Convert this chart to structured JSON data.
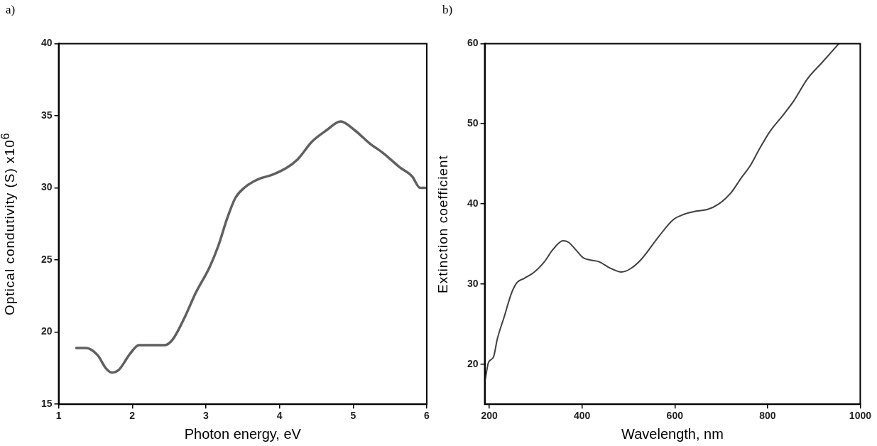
{
  "chart_data": [
    {
      "type": "line",
      "title": "a)",
      "xlabel": "Photon energy, eV",
      "ylabel": "Optical condutivity (S) x10$^{6}$",
      "xlim": [
        1,
        6
      ],
      "ylim": [
        15,
        40
      ],
      "xticks": [
        1,
        2,
        3,
        4,
        5,
        6
      ],
      "yticks": [
        15,
        20,
        25,
        30,
        35,
        40
      ],
      "grid": false,
      "legend": false,
      "marker": "none",
      "line_style": "solid",
      "series": [
        {
          "color": "#606060",
          "x": [
            1.24,
            1.37,
            1.53,
            1.64,
            1.72,
            1.82,
            1.97,
            2.09,
            2.24,
            2.44,
            2.55,
            2.71,
            2.86,
            3.05,
            3.17,
            3.29,
            3.4,
            3.52,
            3.71,
            3.9,
            4.1,
            4.25,
            4.44,
            4.64,
            4.83,
            5.02,
            5.22,
            5.41,
            5.64,
            5.8,
            5.91,
            5.99
          ],
          "values": [
            18.9,
            18.9,
            18.4,
            17.5,
            17.2,
            17.4,
            18.5,
            19.1,
            19.1,
            19.1,
            19.5,
            21,
            22.7,
            24.5,
            26,
            27.9,
            29.3,
            30,
            30.6,
            30.9,
            31.4,
            32,
            33.2,
            34,
            34.6,
            34,
            33.1,
            32.4,
            31.4,
            30.8,
            30,
            30
          ]
        }
      ]
    },
    {
      "type": "line",
      "title": "b)",
      "xlabel": "Wavelength, nm",
      "ylabel": "Extinction coefficient",
      "xlim": [
        190,
        1000
      ],
      "ylim": [
        15,
        60
      ],
      "xticks": [
        200,
        400,
        600,
        800,
        1000
      ],
      "yticks": [
        20,
        30,
        40,
        50,
        60
      ],
      "grid": false,
      "legend": false,
      "marker": "none",
      "line_style": "solid",
      "series": [
        {
          "color": "#404040",
          "x": [
            191,
            198,
            209,
            217,
            232,
            248,
            260,
            275,
            297,
            319,
            337,
            359,
            371,
            386,
            402,
            417,
            436,
            460,
            485,
            504,
            528,
            565,
            596,
            620,
            646,
            670,
            695,
            720,
            744,
            763,
            781,
            806,
            831,
            856,
            886,
            917,
            954
          ],
          "values": [
            18,
            20.2,
            20.9,
            23.1,
            25.9,
            28.9,
            30.2,
            30.7,
            31.5,
            32.8,
            34.3,
            35.4,
            35.2,
            34.3,
            33.3,
            33,
            32.8,
            32,
            31.5,
            31.9,
            33.1,
            35.9,
            38,
            38.7,
            39.1,
            39.3,
            40,
            41.3,
            43.3,
            44.8,
            46.7,
            49.1,
            50.9,
            52.8,
            55.6,
            57.6,
            60
          ]
        }
      ]
    }
  ]
}
